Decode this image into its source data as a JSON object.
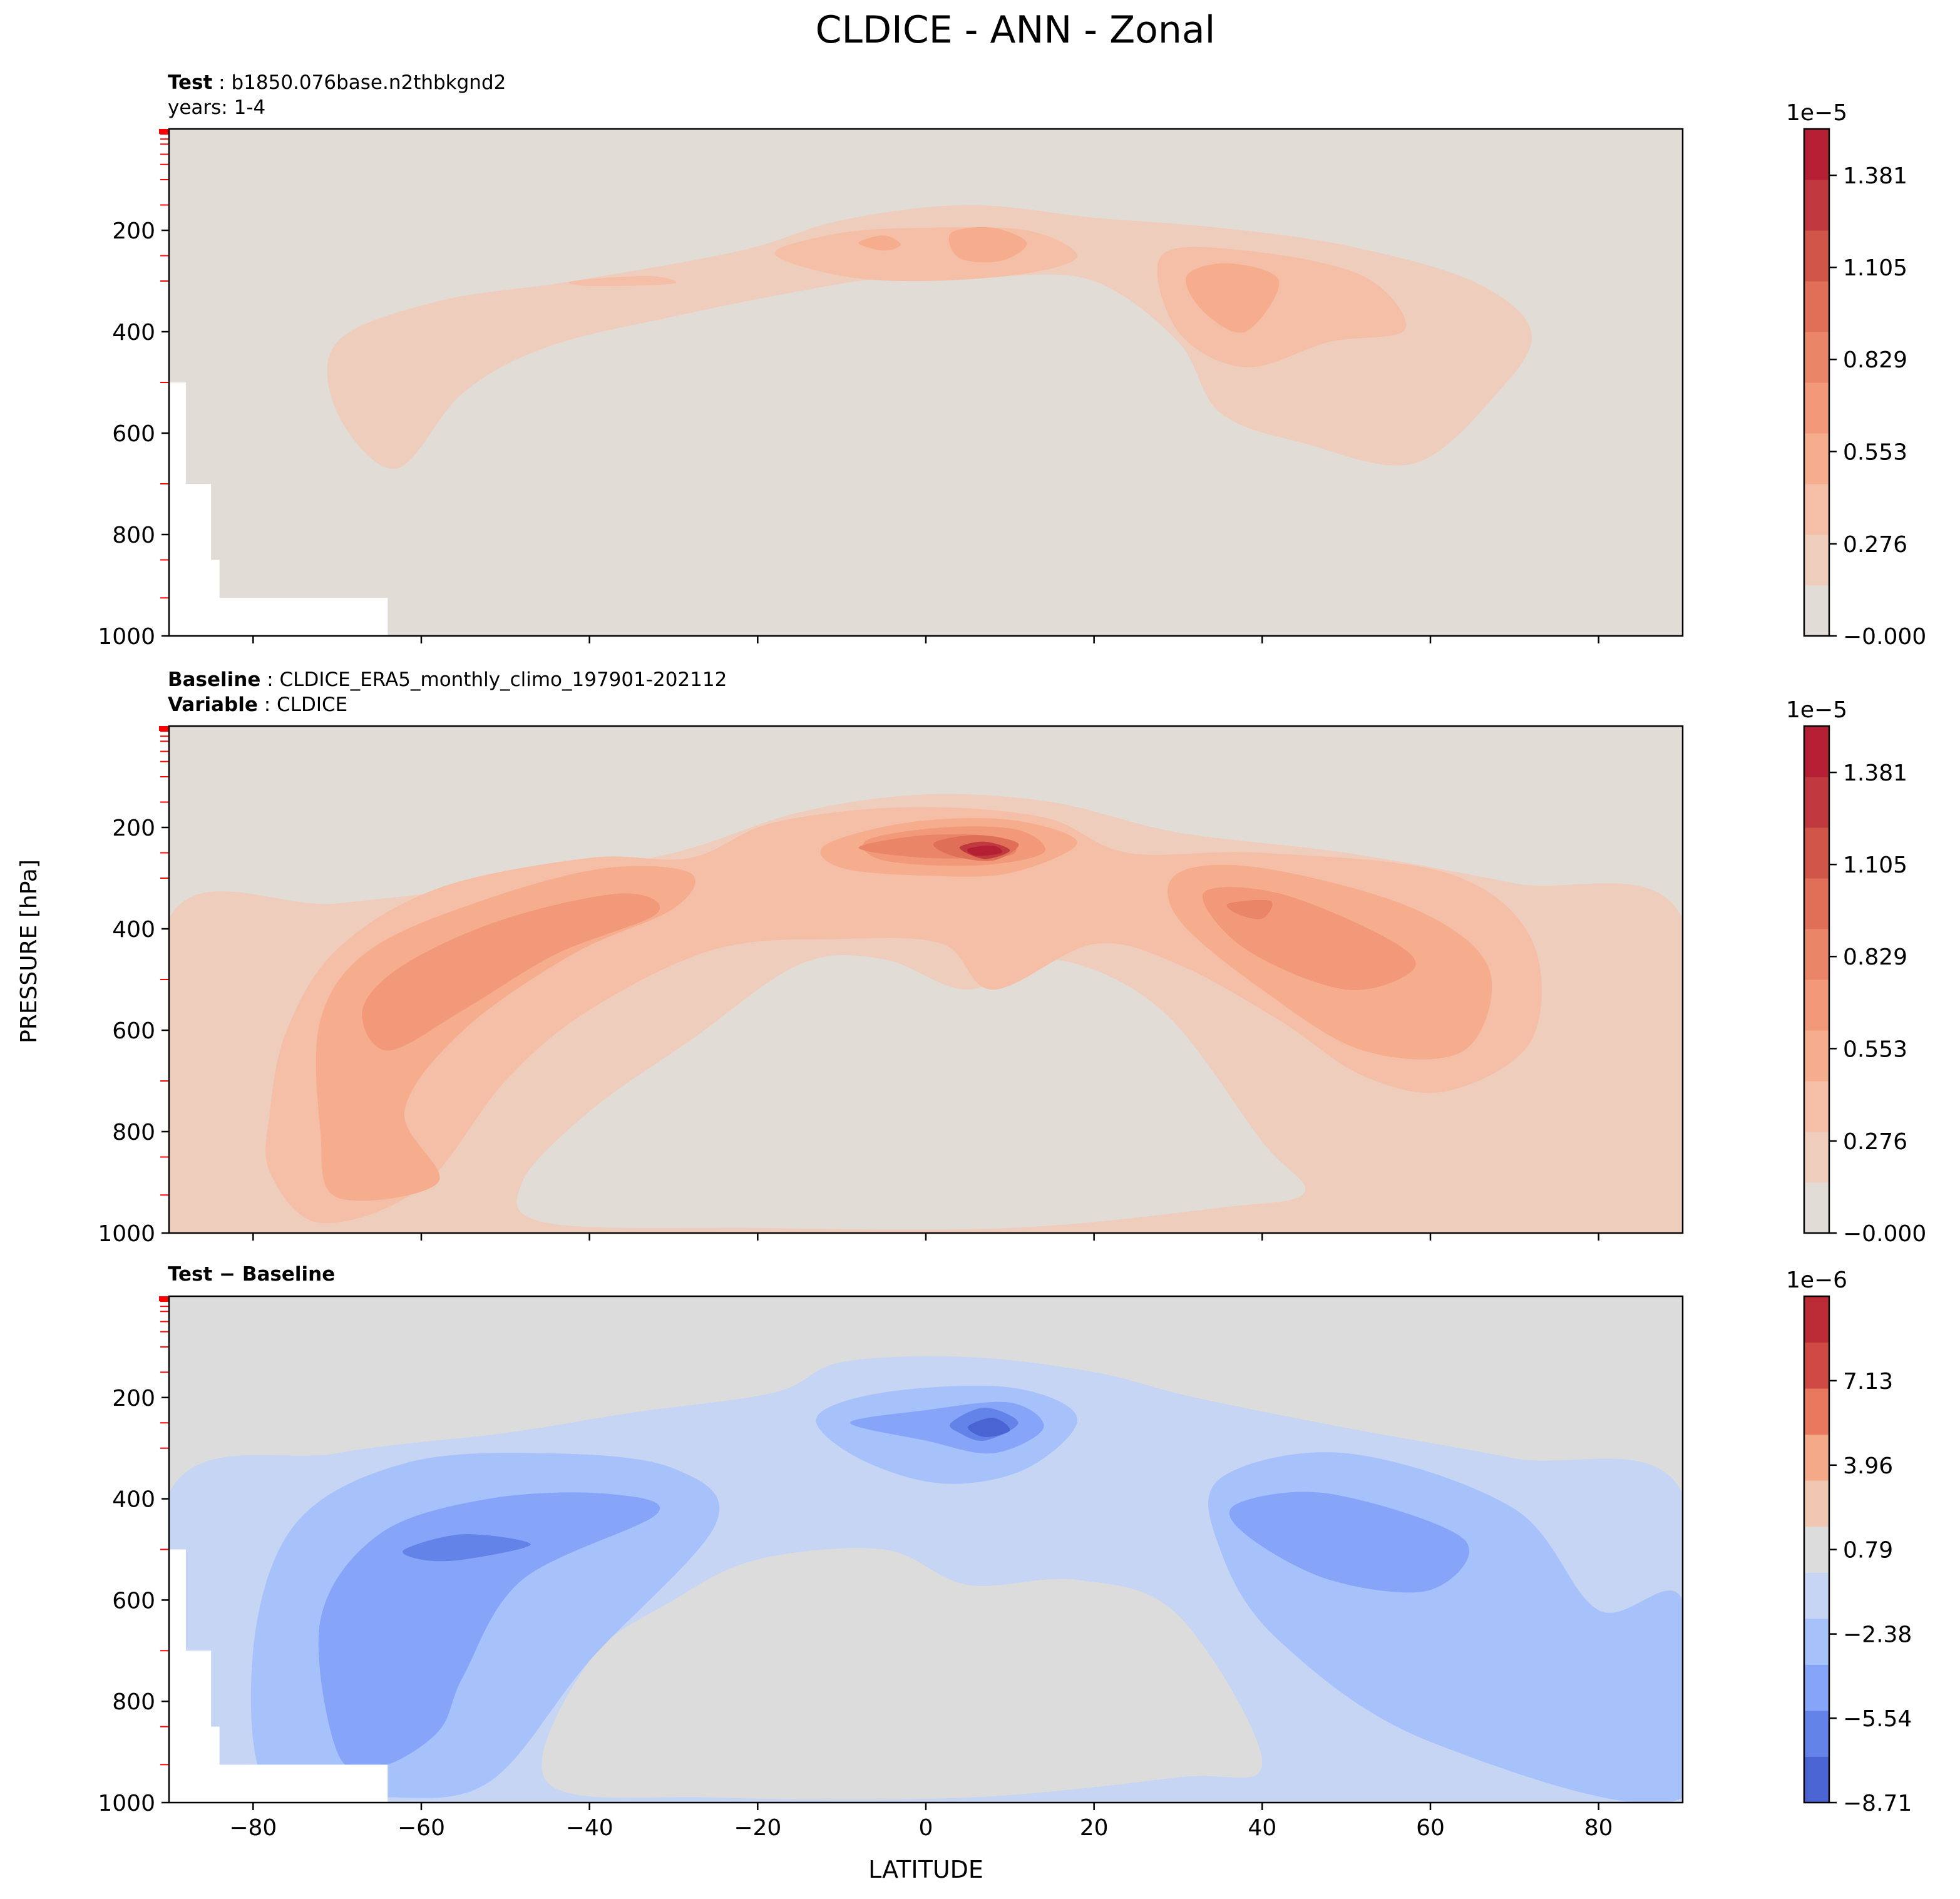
{
  "figure": {
    "title": "CLDICE - ANN - Zonal",
    "ylabel": "PRESSURE [hPa]",
    "xlabel": "LATITUDE"
  },
  "panels": [
    {
      "id": "test",
      "label_bold": "Test",
      "sep": " : ",
      "label_text": "b1850.076base.n2thbkgnd2",
      "label2_bold": "",
      "label2_sep": "",
      "label2_text": "years: 1-4",
      "colorbar_exponent": "1e−5",
      "colorbar_ticks": [
        "1.381",
        "1.105",
        "0.829",
        "0.553",
        "0.276",
        "−0.000"
      ]
    },
    {
      "id": "baseline",
      "label_bold": "Baseline",
      "sep": " : ",
      "label_text": "CLDICE_ERA5_monthly_climo_197901-202112",
      "label2_bold": "Variable",
      "label2_sep": " : ",
      "label2_text": "CLDICE",
      "colorbar_exponent": "1e−5",
      "colorbar_ticks": [
        "1.381",
        "1.105",
        "0.829",
        "0.553",
        "0.276",
        "−0.000"
      ]
    },
    {
      "id": "diff",
      "label_bold": "Test − Baseline",
      "sep": "",
      "label_text": "",
      "label2_bold": "",
      "label2_sep": "",
      "label2_text": "",
      "colorbar_exponent": "1e−6",
      "colorbar_ticks": [
        "7.13",
        "3.96",
        "0.79",
        "−2.38",
        "−5.54",
        "−8.71"
      ]
    }
  ],
  "colors": {
    "abs_levels": [
      "#e2dcd6",
      "#efcdbd",
      "#f4bfa6",
      "#f5ad8e",
      "#f29979",
      "#ea8567",
      "#df6f57",
      "#d1564a",
      "#c0393f",
      "#b51f34"
    ],
    "diff_levels": [
      "#4a64d4",
      "#6383e9",
      "#86a4f8",
      "#a7c1fb",
      "#c5d5f3",
      "#dcdcdc",
      "#f0c7b2",
      "#f4aa88",
      "#e8795f",
      "#d04a45",
      "#bb2b35"
    ],
    "tick_red": "#ff0000"
  },
  "chart_data": [
    {
      "type": "heatmap",
      "title": "Test: b1850.076base.n2thbkgnd2 (years: 1-4)",
      "xlabel": "LATITUDE",
      "ylabel": "PRESSURE [hPa]",
      "xlim": [
        -90,
        90
      ],
      "ylim": [
        1000,
        0
      ],
      "x_ticks": [
        -80,
        -60,
        -40,
        -20,
        0,
        20,
        40,
        60,
        80
      ],
      "y_ticks": [
        200,
        400,
        600,
        800,
        1000
      ],
      "colorbar": {
        "exponent": "1e-5",
        "ticks": [
          1.381,
          1.105,
          0.829,
          0.553,
          0.276,
          0.0
        ],
        "range": [
          0.0,
          1.52
        ]
      },
      "contour_levels_x1e5": [
        0.138,
        0.276,
        0.414,
        0.553,
        0.691
      ],
      "features": [
        {
          "kind": "region",
          "lat": [
            -70,
            72
          ],
          "plev": [
            150,
            680
          ],
          "value_x1e5": 0.2
        },
        {
          "kind": "max",
          "lat": -5,
          "plev": 240,
          "value_x1e5": 0.75
        },
        {
          "kind": "max",
          "lat": 7,
          "plev": 240,
          "value_x1e5": 0.75
        },
        {
          "kind": "max",
          "lat": 35,
          "plev": 310,
          "value_x1e5": 0.6
        },
        {
          "kind": "max",
          "lat": -40,
          "plev": 300,
          "value_x1e5": 0.45
        }
      ]
    },
    {
      "type": "heatmap",
      "title": "Baseline: CLDICE_ERA5_monthly_climo_197901-202112 (Variable: CLDICE)",
      "xlabel": "LATITUDE",
      "ylabel": "PRESSURE [hPa]",
      "xlim": [
        -90,
        90
      ],
      "ylim": [
        1000,
        0
      ],
      "x_ticks": [
        -80,
        -60,
        -40,
        -20,
        0,
        20,
        40,
        60,
        80
      ],
      "y_ticks": [
        200,
        400,
        600,
        800,
        1000
      ],
      "colorbar": {
        "exponent": "1e-5",
        "ticks": [
          1.381,
          1.105,
          0.829,
          0.553,
          0.276,
          0.0
        ],
        "range": [
          0.0,
          1.52
        ]
      },
      "contour_levels_x1e5": [
        0.138,
        0.276,
        0.414,
        0.553,
        0.691,
        0.829,
        0.967,
        1.105,
        1.243,
        1.381
      ],
      "features": [
        {
          "kind": "max",
          "lat": 7,
          "plev": 240,
          "value_x1e5": 1.45
        },
        {
          "kind": "max",
          "lat": -55,
          "plev": 520,
          "value_x1e5": 0.75
        },
        {
          "kind": "max",
          "lat": 40,
          "plev": 380,
          "value_x1e5": 0.75
        },
        {
          "kind": "max",
          "lat": -63,
          "plev": 830,
          "value_x1e5": 0.5
        }
      ]
    },
    {
      "type": "heatmap",
      "title": "Test − Baseline",
      "xlabel": "LATITUDE",
      "ylabel": "PRESSURE [hPa]",
      "xlim": [
        -90,
        90
      ],
      "ylim": [
        1000,
        0
      ],
      "x_ticks": [
        -80,
        -60,
        -40,
        -20,
        0,
        20,
        40,
        60,
        80
      ],
      "y_ticks": [
        200,
        400,
        600,
        800,
        1000
      ],
      "colorbar": {
        "exponent": "1e-6",
        "ticks": [
          7.13,
          3.96,
          0.79,
          -2.38,
          -5.54,
          -8.71
        ],
        "range": [
          -8.71,
          10.3
        ]
      },
      "contour_levels_x1e6": [
        -7.13,
        -5.54,
        -3.96,
        -2.38,
        -0.79
      ],
      "features": [
        {
          "kind": "min",
          "lat": 7,
          "plev": 250,
          "value_x1e6": -8.0
        },
        {
          "kind": "min",
          "lat": -55,
          "plev": 510,
          "value_x1e6": -6.5
        },
        {
          "kind": "min",
          "lat": 50,
          "plev": 480,
          "value_x1e6": -5.0
        }
      ]
    }
  ]
}
